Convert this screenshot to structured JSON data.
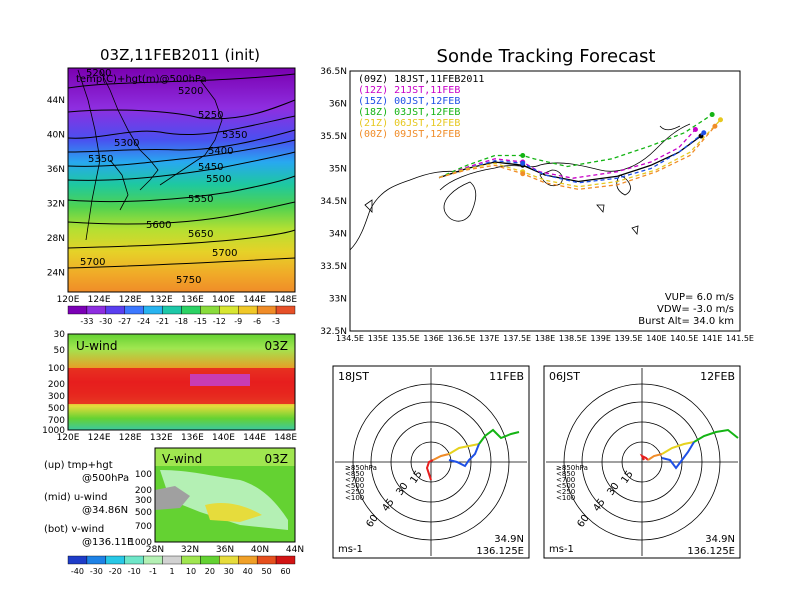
{
  "left_top": {
    "title": "03Z,11FEB2011 (init)",
    "field_label": "temp(C)+hgt(m)@500hPa",
    "x_ticks": [
      "120E",
      "124E",
      "128E",
      "132E",
      "136E",
      "140E",
      "144E",
      "148E"
    ],
    "y_ticks": [
      "44N",
      "40N",
      "36N",
      "32N",
      "28N",
      "24N"
    ],
    "contour_labels": [
      "5200",
      "5200",
      "5250",
      "5300",
      "5350",
      "5350",
      "5400",
      "5450",
      "5500",
      "5550",
      "5600",
      "5650",
      "5700",
      "5700",
      "5750"
    ],
    "colorbar_labels": [
      "-33",
      "-30",
      "-27",
      "-24",
      "-21",
      "-18",
      "-15",
      "-12",
      "-9",
      "-6",
      "-3"
    ],
    "colorbar_colors": [
      "#7b00b5",
      "#8e2ee0",
      "#5a3ff0",
      "#3c78ff",
      "#28b4f0",
      "#1ec8a8",
      "#2cd264",
      "#8adc3c",
      "#d8e632",
      "#f0c828",
      "#f08c28",
      "#e65028"
    ]
  },
  "left_mid": {
    "label": "U-wind",
    "time": "03Z",
    "y_ticks": [
      "30",
      "50",
      "100",
      "200",
      "300",
      "500",
      "700",
      "1000"
    ],
    "x_ticks": [
      "120E",
      "124E",
      "128E",
      "132E",
      "136E",
      "140E",
      "144E",
      "148E"
    ]
  },
  "left_bot": {
    "label": "V-wind",
    "time": "03Z",
    "y_ticks": [
      "100",
      "200",
      "300",
      "500",
      "700",
      "1000"
    ],
    "x_ticks": [
      "28N",
      "32N",
      "36N",
      "40N",
      "44N"
    ],
    "colorbar_labels": [
      "-40",
      "-30",
      "-20",
      "-10",
      "-1",
      "1",
      "10",
      "20",
      "30",
      "40",
      "50",
      "60"
    ],
    "colorbar_colors": [
      "#1e3cc8",
      "#1e82e6",
      "#28c8e6",
      "#6ee6c8",
      "#b4f0b4",
      "#d2d2d2",
      "#a0e650",
      "#64d232",
      "#e6dc3c",
      "#f0a028",
      "#e6501e",
      "#d21414"
    ]
  },
  "legend_text": {
    "up": [
      "(up) tmp+hgt",
      "@500hPa"
    ],
    "mid": [
      "(mid) u-wind",
      "@34.86N"
    ],
    "bot": [
      "(bot) v-wind",
      "@136.11E"
    ]
  },
  "right_top": {
    "title": "Sonde Tracking Forecast",
    "forecasts": [
      {
        "label": "(09Z)  18JST,11FEB2011",
        "color": "#000000"
      },
      {
        "label": "(12Z)  21JST,11FEB",
        "color": "#c800c8"
      },
      {
        "label": "(15Z)  00JST,12FEB",
        "color": "#1e50e6"
      },
      {
        "label": "(18Z)  03JST,12FEB",
        "color": "#14b414"
      },
      {
        "label": "(21Z)  06JST,12FEB",
        "color": "#e6c81e"
      },
      {
        "label": "(00Z)  09JST,12FEB",
        "color": "#f08c28"
      }
    ],
    "info": [
      "VUP=  6.0 m/s",
      "VDW= -3.0 m/s",
      "Burst Alt= 34.0 km"
    ]
  },
  "polar1": {
    "left": "18JST",
    "right": "11FEB",
    "lat": "34.9N",
    "lon": "136.125E",
    "unit": "ms-1"
  },
  "polar2": {
    "left": "06JST",
    "right": "12FEB",
    "lat": "34.9N",
    "lon": "136.125E",
    "unit": "ms-1"
  },
  "polar_legend": [
    {
      "label": "≥850hPa",
      "color": "#e61e1e"
    },
    {
      "label": "<850",
      "color": "#f08c28"
    },
    {
      "label": "<700",
      "color": "#e6d21e"
    },
    {
      "label": "<500",
      "color": "#14b414"
    },
    {
      "label": "<250",
      "color": "#28b4f0"
    },
    {
      "label": "<100",
      "color": "#1e3cc8"
    }
  ],
  "polar_ring_labels": [
    "15",
    "30",
    "45",
    "60"
  ],
  "chart_data": [
    {
      "type": "line",
      "title": "Sonde Tracking Forecast",
      "xlim": [
        134.5,
        141.5
      ],
      "ylim": [
        32.5,
        36.5
      ],
      "x_ticks": [
        "134.5E",
        "135E",
        "135.5E",
        "136E",
        "136.5E",
        "137E",
        "137.5E",
        "138E",
        "138.5E",
        "139E",
        "139.5E",
        "140E",
        "140.5E",
        "141E",
        "141.5E"
      ],
      "y_ticks": [
        "36.5N",
        "36N",
        "35.5N",
        "35N",
        "34.5N",
        "34N",
        "33.5N",
        "33N",
        "32.5N"
      ],
      "series": [
        {
          "name": "(09Z)  18JST,11FEB2011",
          "color": "#000000",
          "x": [
            136.1,
            136.6,
            137.1,
            137.6,
            138.0,
            138.6,
            139.3,
            139.9,
            140.4,
            140.8
          ],
          "y": [
            34.86,
            35.0,
            35.1,
            35.05,
            34.9,
            34.8,
            34.88,
            35.05,
            35.25,
            35.5
          ]
        },
        {
          "name": "(12Z)  21JST,11FEB",
          "color": "#c800c8",
          "x": [
            136.1,
            136.6,
            137.1,
            137.6,
            137.9,
            138.5,
            139.3,
            139.9,
            140.4,
            140.7
          ],
          "y": [
            34.86,
            35.02,
            35.15,
            35.1,
            34.95,
            34.85,
            34.95,
            35.1,
            35.32,
            35.6
          ]
        },
        {
          "name": "(15Z)  00JST,12FEB",
          "color": "#1e50e6",
          "x": [
            136.1,
            136.6,
            137.1,
            137.6,
            138.0,
            138.6,
            139.3,
            139.9,
            140.4,
            140.85
          ],
          "y": [
            34.86,
            35.0,
            35.12,
            35.08,
            34.9,
            34.78,
            34.85,
            35.0,
            35.25,
            35.55
          ]
        },
        {
          "name": "(18Z)  03JST,12FEB",
          "color": "#14b414",
          "x": [
            136.1,
            136.6,
            137.1,
            137.6,
            137.8,
            138.4,
            139.2,
            139.9,
            140.5,
            141.0
          ],
          "y": [
            34.86,
            35.05,
            35.2,
            35.2,
            35.15,
            35.03,
            35.15,
            35.35,
            35.55,
            35.83
          ]
        },
        {
          "name": "(21Z)  06JST,12FEB",
          "color": "#e6c81e",
          "x": [
            136.1,
            136.6,
            137.1,
            137.6,
            138.0,
            138.6,
            139.3,
            140.0,
            140.6,
            141.15
          ],
          "y": [
            34.86,
            35.0,
            35.08,
            34.95,
            34.82,
            34.72,
            34.8,
            34.98,
            35.25,
            35.75
          ]
        },
        {
          "name": "(00Z)  09JST,12FEB",
          "color": "#f08c28",
          "x": [
            136.1,
            136.6,
            137.1,
            137.6,
            138.0,
            138.6,
            139.3,
            140.0,
            140.6,
            141.05
          ],
          "y": [
            34.86,
            34.98,
            35.05,
            34.92,
            34.78,
            34.68,
            34.75,
            34.95,
            35.2,
            35.65
          ]
        }
      ]
    }
  ]
}
